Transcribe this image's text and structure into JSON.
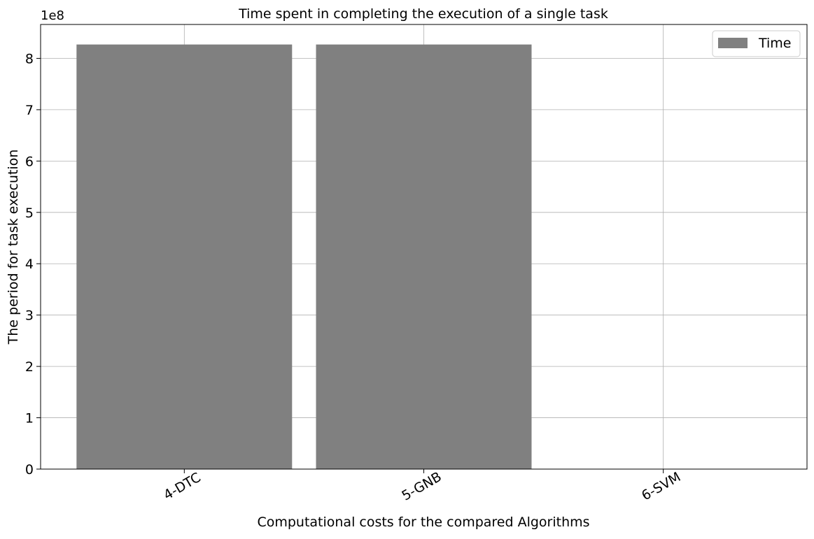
{
  "chart_data": {
    "type": "bar",
    "title": "Time spent in completing the execution of a single task",
    "xlabel": "Computational costs for the compared Algorithms",
    "ylabel": "The period for task execution",
    "categories": [
      "4-DTC",
      "5-GNB",
      "6-SVM"
    ],
    "series": [
      {
        "name": "Time",
        "values": [
          827000000,
          827000000,
          0
        ],
        "color": "#808080"
      }
    ],
    "ylim": [
      0,
      866000000
    ],
    "yticks": [
      0,
      100000000,
      200000000,
      300000000,
      400000000,
      500000000,
      600000000,
      700000000,
      800000000
    ],
    "ytick_labels": [
      "0",
      "1",
      "2",
      "3",
      "4",
      "5",
      "6",
      "7",
      "8"
    ],
    "y_offset_label": "1e8",
    "grid": true,
    "legend_position": "top-right",
    "xtick_rotation": "30 degrees"
  }
}
